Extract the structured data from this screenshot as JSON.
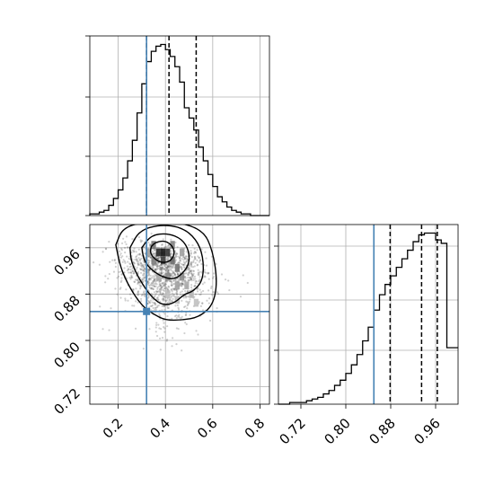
{
  "chart_data": {
    "type": "corner",
    "parameters": [
      "",
      ""
    ],
    "truth": {
      "x": 0.32,
      "y": 0.85
    },
    "colors": {
      "truth": "#4682b4",
      "hist": "#000000",
      "grid": "#b0b0b0",
      "scatter": "#555555"
    },
    "grid": true,
    "histogram_x": {
      "xlim": [
        0.08,
        0.84
      ],
      "quantiles": [
        0.32,
        0.415,
        0.53
      ],
      "bin_edges": [
        0.08,
        0.1,
        0.12,
        0.14,
        0.16,
        0.18,
        0.2,
        0.22,
        0.24,
        0.26,
        0.28,
        0.3,
        0.32,
        0.34,
        0.36,
        0.38,
        0.4,
        0.42,
        0.44,
        0.46,
        0.48,
        0.5,
        0.52,
        0.54,
        0.56,
        0.58,
        0.6,
        0.62,
        0.64,
        0.66,
        0.68,
        0.7,
        0.72,
        0.74,
        0.76,
        0.78,
        0.8,
        0.82,
        0.84
      ],
      "counts": [
        0.01,
        0.01,
        0.02,
        0.03,
        0.06,
        0.1,
        0.15,
        0.22,
        0.32,
        0.44,
        0.6,
        0.77,
        0.9,
        0.96,
        0.99,
        1.0,
        0.97,
        0.93,
        0.87,
        0.78,
        0.63,
        0.57,
        0.5,
        0.4,
        0.32,
        0.24,
        0.17,
        0.11,
        0.08,
        0.05,
        0.03,
        0.02,
        0.01,
        0.01,
        0.0,
        0.0,
        0.0,
        0.0
      ]
    },
    "histogram_y": {
      "xlim": [
        0.68,
        1.0
      ],
      "ticks": [
        0.72,
        0.8,
        0.88,
        0.96
      ],
      "tick_labels": [
        "0.72",
        "0.80",
        "0.88",
        "0.96"
      ],
      "quantiles": [
        0.879,
        0.935,
        0.963
      ],
      "bin_edges": [
        0.68,
        0.69,
        0.7,
        0.71,
        0.72,
        0.73,
        0.74,
        0.75,
        0.76,
        0.77,
        0.78,
        0.79,
        0.8,
        0.81,
        0.82,
        0.83,
        0.84,
        0.85,
        0.86,
        0.87,
        0.88,
        0.89,
        0.9,
        0.91,
        0.92,
        0.93,
        0.94,
        0.95,
        0.96,
        0.97,
        0.98,
        0.99,
        1.0
      ],
      "counts": [
        0.0,
        0.0,
        0.01,
        0.01,
        0.01,
        0.02,
        0.03,
        0.04,
        0.06,
        0.08,
        0.11,
        0.14,
        0.18,
        0.23,
        0.29,
        0.37,
        0.45,
        0.55,
        0.64,
        0.7,
        0.75,
        0.8,
        0.85,
        0.9,
        0.95,
        0.99,
        1.0,
        1.0,
        0.96,
        0.94,
        0.33,
        0.33
      ]
    },
    "scatter": {
      "xlim": [
        0.08,
        0.84
      ],
      "ylim": [
        0.69,
        1.0
      ],
      "x_ticks": [
        0.2,
        0.4,
        0.6,
        0.8
      ],
      "x_tick_labels": [
        "0.2",
        "0.4",
        "0.6",
        "0.8"
      ],
      "y_ticks": [
        0.72,
        0.8,
        0.88,
        0.96
      ],
      "y_tick_labels": [
        "0.72",
        "0.80",
        "0.88",
        "0.96"
      ],
      "density_peak": {
        "x": 0.39,
        "y": 0.952
      },
      "density_cells": [
        {
          "x": 0.39,
          "y": 0.952,
          "level": 1.0
        },
        {
          "x": 0.37,
          "y": 0.952,
          "level": 0.9
        },
        {
          "x": 0.41,
          "y": 0.952,
          "level": 0.85
        },
        {
          "x": 0.39,
          "y": 0.938,
          "level": 0.8
        },
        {
          "x": 0.35,
          "y": 0.965,
          "level": 0.55
        },
        {
          "x": 0.43,
          "y": 0.938,
          "level": 0.6
        },
        {
          "x": 0.45,
          "y": 0.925,
          "level": 0.55
        },
        {
          "x": 0.47,
          "y": 0.91,
          "level": 0.45
        },
        {
          "x": 0.43,
          "y": 0.965,
          "level": 0.5
        },
        {
          "x": 0.35,
          "y": 0.938,
          "level": 0.5
        },
        {
          "x": 0.41,
          "y": 0.91,
          "level": 0.45
        },
        {
          "x": 0.45,
          "y": 0.895,
          "level": 0.35
        },
        {
          "x": 0.49,
          "y": 0.895,
          "level": 0.3
        },
        {
          "x": 0.51,
          "y": 0.88,
          "level": 0.25
        },
        {
          "x": 0.37,
          "y": 0.91,
          "level": 0.3
        },
        {
          "x": 0.33,
          "y": 0.952,
          "level": 0.35
        },
        {
          "x": 0.47,
          "y": 0.952,
          "level": 0.35
        },
        {
          "x": 0.45,
          "y": 0.87,
          "level": 0.2
        },
        {
          "x": 0.53,
          "y": 0.865,
          "level": 0.2
        },
        {
          "x": 0.41,
          "y": 0.88,
          "level": 0.2
        }
      ],
      "contours": [
        [
          [
            0.34,
            0.962
          ],
          [
            0.36,
            0.97
          ],
          [
            0.4,
            0.972
          ],
          [
            0.43,
            0.963
          ],
          [
            0.44,
            0.95
          ],
          [
            0.42,
            0.936
          ],
          [
            0.38,
            0.934
          ],
          [
            0.35,
            0.942
          ],
          [
            0.335,
            0.952
          ]
        ],
        [
          [
            0.3,
            0.96
          ],
          [
            0.34,
            0.982
          ],
          [
            0.41,
            0.985
          ],
          [
            0.47,
            0.975
          ],
          [
            0.5,
            0.955
          ],
          [
            0.5,
            0.93
          ],
          [
            0.46,
            0.91
          ],
          [
            0.42,
            0.905
          ],
          [
            0.36,
            0.915
          ],
          [
            0.31,
            0.935
          ]
        ],
        [
          [
            0.25,
            0.96
          ],
          [
            0.29,
            0.99
          ],
          [
            0.38,
            1.0
          ],
          [
            0.47,
            0.995
          ],
          [
            0.53,
            0.975
          ],
          [
            0.56,
            0.945
          ],
          [
            0.56,
            0.905
          ],
          [
            0.52,
            0.885
          ],
          [
            0.48,
            0.88
          ],
          [
            0.44,
            0.865
          ],
          [
            0.39,
            0.86
          ],
          [
            0.34,
            0.875
          ],
          [
            0.29,
            0.905
          ],
          [
            0.255,
            0.935
          ]
        ],
        [
          [
            0.19,
            0.965
          ],
          [
            0.22,
            0.995
          ],
          [
            0.32,
            1.005
          ],
          [
            0.45,
            1.005
          ],
          [
            0.56,
            0.99
          ],
          [
            0.6,
            0.955
          ],
          [
            0.62,
            0.9
          ],
          [
            0.6,
            0.86
          ],
          [
            0.54,
            0.84
          ],
          [
            0.47,
            0.835
          ],
          [
            0.4,
            0.835
          ],
          [
            0.35,
            0.845
          ],
          [
            0.3,
            0.86
          ],
          [
            0.25,
            0.89
          ],
          [
            0.21,
            0.925
          ]
        ]
      ]
    }
  }
}
